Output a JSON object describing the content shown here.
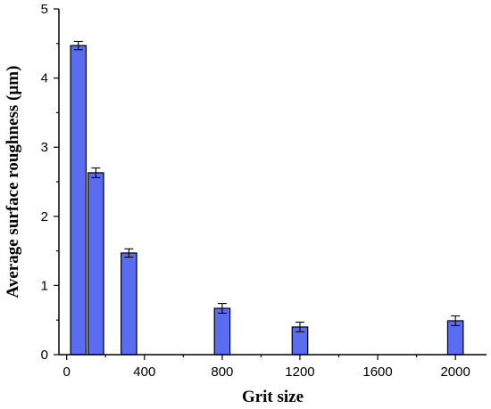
{
  "chart_data": {
    "type": "bar",
    "xlabel": "Grit size",
    "ylabel": "Average surface roughness (µm)",
    "xlim": [
      -40,
      2160
    ],
    "ylim": [
      0,
      5
    ],
    "x_ticks": [
      0,
      400,
      800,
      1200,
      1600,
      2000
    ],
    "y_ticks": [
      0,
      1,
      2,
      3,
      4,
      5
    ],
    "bar_width": 80,
    "bar_color": "#5a6cf0",
    "grid": false,
    "x": [
      60,
      150,
      320,
      800,
      1200,
      2000
    ],
    "values": [
      4.47,
      2.63,
      1.47,
      0.67,
      0.4,
      0.49
    ],
    "errors": [
      0.06,
      0.07,
      0.06,
      0.07,
      0.07,
      0.07
    ]
  }
}
